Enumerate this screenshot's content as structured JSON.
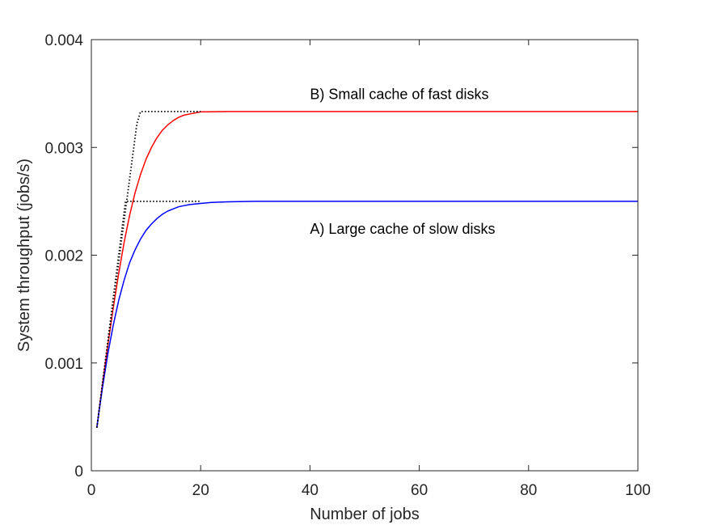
{
  "chart_data": {
    "type": "line",
    "title": "",
    "xlabel": "Number of jobs",
    "ylabel": "System throughput (jobs/s)",
    "xlim": [
      0,
      100
    ],
    "ylim": [
      0,
      0.004
    ],
    "x_ticks": [
      0,
      20,
      40,
      60,
      80,
      100
    ],
    "x_tick_labels": [
      "0",
      "20",
      "40",
      "60",
      "80",
      "100"
    ],
    "y_ticks": [
      0,
      0.001,
      0.002,
      0.003,
      0.004
    ],
    "y_tick_labels": [
      "0",
      "0.001",
      "0.002",
      "0.003",
      "0.004"
    ],
    "grid": false,
    "box": true,
    "series": [
      {
        "color": "#ff0000",
        "style": "solid",
        "x": [
          1,
          2,
          3,
          4,
          5,
          6,
          7,
          8,
          9,
          10,
          11,
          12,
          13,
          14,
          15,
          16,
          17,
          18,
          20,
          25,
          30,
          40,
          60,
          80,
          100
        ],
        "y": [
          0.0004,
          0.00079,
          0.00116,
          0.00151,
          0.00183,
          0.00212,
          0.00237,
          0.00258,
          0.00275,
          0.00289,
          0.003,
          0.00309,
          0.00316,
          0.00321,
          0.00325,
          0.00328,
          0.0033,
          0.00331,
          0.00333,
          0.003333,
          0.003333,
          0.003333,
          0.003333,
          0.003333,
          0.003333
        ]
      },
      {
        "color": "#0000ff",
        "style": "solid",
        "x": [
          1,
          2,
          3,
          4,
          5,
          6,
          7,
          8,
          9,
          10,
          11,
          12,
          13,
          14,
          15,
          16,
          17,
          18,
          20,
          22,
          25,
          30,
          40,
          60,
          80,
          100
        ],
        "y": [
          0.0004,
          0.00076,
          0.00108,
          0.00135,
          0.00158,
          0.00177,
          0.00193,
          0.00205,
          0.00215,
          0.00223,
          0.00229,
          0.00234,
          0.00238,
          0.00241,
          0.00243,
          0.00245,
          0.00246,
          0.00247,
          0.00248,
          0.00249,
          0.002495,
          0.0025,
          0.0025,
          0.0025,
          0.0025,
          0.0025
        ]
      },
      {
        "color": "#000000",
        "style": "dotted",
        "x": [
          1,
          8.33,
          9,
          20
        ],
        "y": [
          0.0004,
          0.00322,
          0.003333,
          0.003333
        ]
      },
      {
        "color": "#000000",
        "style": "dotted",
        "x": [
          1,
          6.25,
          8,
          20
        ],
        "y": [
          0.0004,
          0.0025,
          0.0025,
          0.0025
        ]
      }
    ],
    "annotations": [
      {
        "text": "B) Small cache of fast disks",
        "x": 40,
        "y": 0.0035
      },
      {
        "text": "A) Large cache of slow disks",
        "x": 40,
        "y": 0.00225
      }
    ]
  }
}
